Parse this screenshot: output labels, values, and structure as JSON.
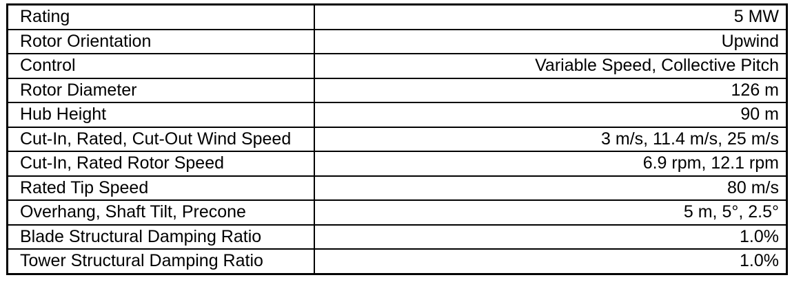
{
  "rows": [
    {
      "label": "Rating",
      "value": "5 MW"
    },
    {
      "label": "Rotor Orientation",
      "value": "Upwind"
    },
    {
      "label": "Control",
      "value": "Variable Speed, Collective Pitch"
    },
    {
      "label": "Rotor Diameter",
      "value": "126 m"
    },
    {
      "label": "Hub Height",
      "value": "90 m"
    },
    {
      "label": "Cut-In, Rated, Cut-Out Wind Speed",
      "value": "3 m/s, 11.4 m/s, 25 m/s"
    },
    {
      "label": "Cut-In, Rated Rotor Speed",
      "value": "6.9 rpm, 12.1 rpm"
    },
    {
      "label": "Rated Tip Speed",
      "value": "80 m/s"
    },
    {
      "label": "Overhang, Shaft Tilt, Precone",
      "value": "5 m, 5°, 2.5°"
    },
    {
      "label": "Blade Structural Damping Ratio",
      "value": "1.0%"
    },
    {
      "label": "Tower Structural Damping Ratio",
      "value": "1.0%"
    }
  ]
}
